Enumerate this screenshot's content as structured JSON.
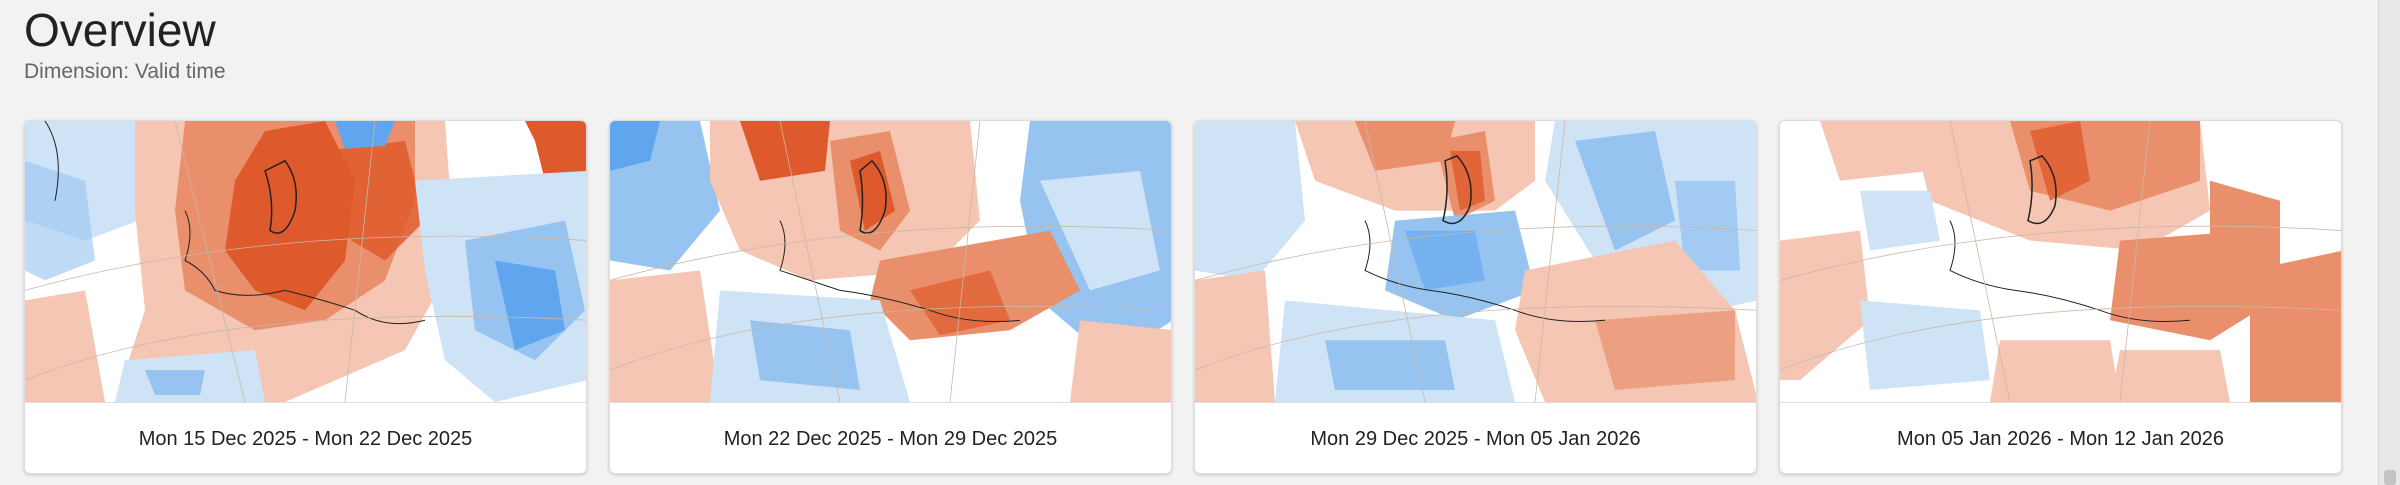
{
  "header": {
    "title": "Overview",
    "subtitle": "Dimension: Valid time"
  },
  "colors": {
    "warm_strong": "#de5a2c",
    "warm_medium": "#e98f6c",
    "warm_light": "#f4c6b3",
    "cold_strong": "#5fa6ee",
    "cold_medium": "#96c3f0",
    "cold_light": "#cfe3f7",
    "neutral": "#ffffff",
    "coast": "#222222",
    "grid": "#c8b8a8"
  },
  "cards": [
    {
      "label": "Mon 15 Dec 2025 - Mon 22 Dec 2025",
      "anomaly": "warm"
    },
    {
      "label": "Mon 22 Dec 2025 - Mon 29 Dec 2025",
      "anomaly": "mixed"
    },
    {
      "label": "Mon 29 Dec 2025 - Mon 05 Jan 2026",
      "anomaly": "mixed"
    },
    {
      "label": "Mon 05 Jan 2026 - Mon 12 Jan 2026",
      "anomaly": "warm"
    }
  ]
}
